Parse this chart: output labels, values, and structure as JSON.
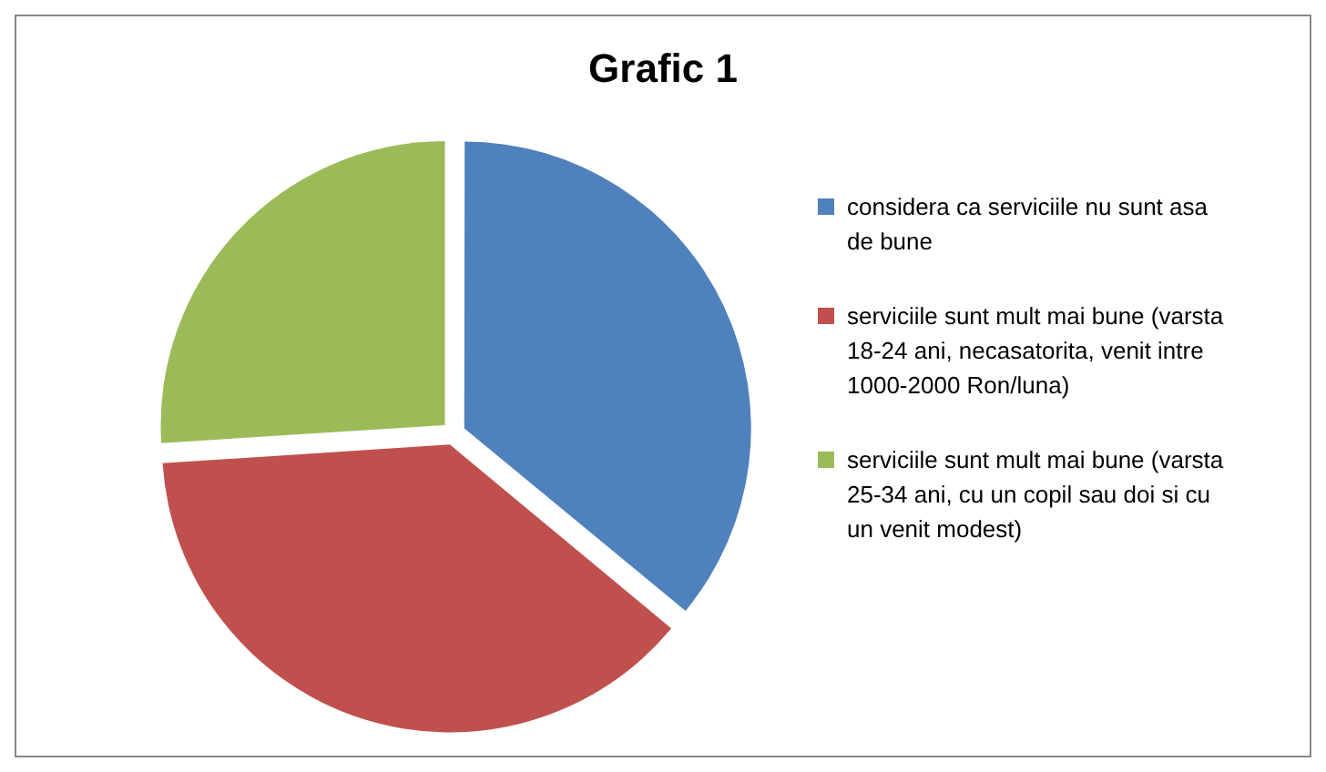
{
  "chart_data": {
    "type": "pie",
    "title": "Grafic 1",
    "categories": [
      "considera ca serviciile nu sunt asa de bune",
      "serviciile sunt mult mai bune (varsta 18-24 ani, necasatorita, venit intre 1000-2000 Ron/luna)",
      "serviciile sunt mult mai bune (varsta 25-34 ani, cu un copil sau doi si cu un venit modest)"
    ],
    "values": [
      36,
      38,
      26
    ],
    "colors": [
      "#4f81bd",
      "#c0504d",
      "#9bbb59"
    ],
    "legend": "right"
  }
}
